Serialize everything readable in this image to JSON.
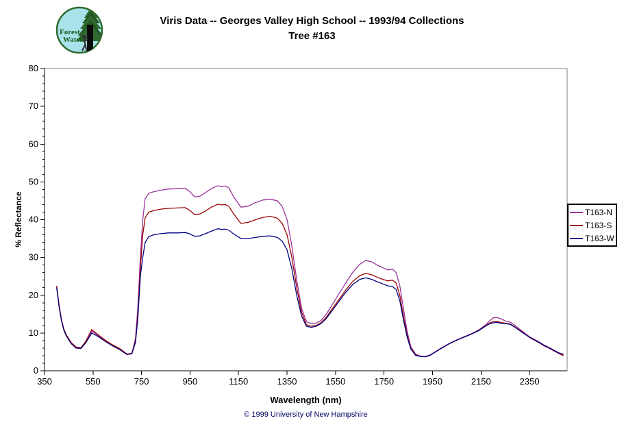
{
  "page": {
    "background": "#FFFFFF"
  },
  "logo": {
    "line1": "Forest",
    "line2": "Watch",
    "bg_color": "#A9E3EA",
    "ring_color": "#2D6A2D",
    "foliage_color": "#2F6B2F",
    "foliage_dark": "#1F4F1F",
    "trunk_color": "#0A0A0A",
    "text_color": "#1E5C1E"
  },
  "header": {
    "title_line1": "Viris Data -- Georges Valley High School -- 1993/94 Collections",
    "title_line2": "Tree #163"
  },
  "footer": {
    "copyright": "© 1999 University of New Hampshire",
    "color": "#000066"
  },
  "chart_data": {
    "type": "line",
    "title": "Viris Data -- Georges Valley High School -- 1993/94 Collections Tree #163",
    "xlabel": "Wavelength (nm)",
    "ylabel": "% Reflectance",
    "xlim": [
      350,
      2505
    ],
    "ylim": [
      0,
      80
    ],
    "x_ticks": [
      350,
      550,
      750,
      950,
      1150,
      1350,
      1550,
      1750,
      1950,
      2150,
      2350
    ],
    "y_ticks": [
      0,
      10,
      20,
      30,
      40,
      50,
      60,
      70,
      80
    ],
    "y_minor_step": 2,
    "grid": false,
    "legend_position": "right",
    "plot_border_color": "#808080",
    "axis_color": "#000000",
    "x": [
      400,
      410,
      420,
      430,
      440,
      460,
      480,
      500,
      520,
      545,
      570,
      600,
      630,
      660,
      690,
      710,
      725,
      735,
      745,
      755,
      765,
      780,
      800,
      830,
      860,
      900,
      930,
      950,
      970,
      990,
      1010,
      1040,
      1065,
      1080,
      1095,
      1110,
      1130,
      1160,
      1190,
      1220,
      1250,
      1280,
      1310,
      1330,
      1350,
      1370,
      1390,
      1410,
      1430,
      1450,
      1470,
      1490,
      1510,
      1530,
      1560,
      1590,
      1620,
      1650,
      1675,
      1700,
      1720,
      1745,
      1765,
      1785,
      1800,
      1815,
      1830,
      1845,
      1860,
      1880,
      1900,
      1920,
      1940,
      1960,
      1990,
      2020,
      2050,
      2080,
      2110,
      2140,
      2170,
      2185,
      2200,
      2215,
      2230,
      2250,
      2270,
      2290,
      2310,
      2330,
      2350,
      2370,
      2390,
      2410,
      2430,
      2450,
      2470,
      2490
    ],
    "series": [
      {
        "name": "T163-N",
        "color": "#993399",
        "values": [
          22.3,
          17.3,
          13.4,
          10.9,
          9.4,
          7.4,
          6.2,
          6.0,
          7.6,
          10.5,
          9.4,
          8.0,
          6.8,
          5.8,
          4.4,
          4.6,
          8.5,
          17.0,
          30.0,
          40.0,
          45.5,
          47.0,
          47.4,
          47.8,
          48.1,
          48.2,
          48.3,
          47.4,
          46.0,
          46.2,
          47.0,
          48.3,
          49.0,
          48.7,
          48.9,
          48.4,
          46.0,
          43.3,
          43.6,
          44.5,
          45.2,
          45.4,
          45.0,
          43.5,
          40.0,
          33.0,
          24.0,
          16.5,
          13.0,
          12.5,
          12.6,
          13.3,
          14.8,
          16.8,
          20.0,
          23.0,
          26.0,
          28.2,
          29.2,
          28.8,
          28.0,
          27.3,
          26.7,
          26.9,
          26.0,
          22.5,
          16.5,
          10.5,
          6.5,
          4.4,
          3.9,
          3.8,
          4.2,
          5.0,
          6.2,
          7.3,
          8.2,
          9.0,
          9.8,
          10.8,
          12.2,
          13.2,
          14.0,
          14.1,
          13.8,
          13.2,
          12.9,
          12.0,
          11.0,
          10.0,
          9.0,
          8.3,
          7.6,
          6.8,
          6.2,
          5.5,
          4.8,
          4.3
        ]
      },
      {
        "name": "T163-S",
        "color": "#990000",
        "values": [
          22.5,
          17.5,
          13.5,
          11.0,
          9.5,
          7.5,
          6.3,
          6.1,
          7.8,
          10.9,
          9.6,
          8.1,
          6.9,
          5.9,
          4.4,
          4.6,
          8.0,
          15.0,
          27.0,
          36.0,
          40.5,
          42.0,
          42.4,
          42.8,
          43.0,
          43.1,
          43.2,
          42.4,
          41.3,
          41.5,
          42.2,
          43.4,
          44.1,
          43.9,
          44.0,
          43.5,
          41.5,
          39.0,
          39.3,
          40.0,
          40.6,
          40.9,
          40.4,
          39.0,
          36.0,
          30.0,
          22.0,
          15.5,
          12.2,
          11.8,
          12.0,
          12.7,
          14.0,
          15.8,
          18.5,
          21.2,
          23.6,
          25.2,
          25.8,
          25.4,
          24.8,
          24.2,
          23.8,
          24.0,
          23.2,
          20.0,
          14.5,
          9.5,
          6.0,
          4.2,
          3.8,
          3.7,
          4.1,
          4.9,
          6.1,
          7.2,
          8.1,
          8.9,
          9.7,
          10.7,
          12.0,
          12.6,
          13.0,
          13.1,
          12.8,
          12.6,
          12.4,
          11.6,
          10.7,
          9.8,
          8.8,
          8.1,
          7.4,
          6.6,
          6.0,
          5.3,
          4.6,
          4.0
        ]
      },
      {
        "name": "T163-W",
        "color": "#000080",
        "values": [
          22.0,
          17.0,
          13.2,
          10.7,
          9.2,
          7.2,
          6.0,
          5.9,
          7.4,
          10.0,
          9.1,
          7.8,
          6.6,
          5.6,
          4.3,
          4.5,
          7.5,
          14.0,
          25.0,
          30.0,
          34.0,
          35.5,
          36.0,
          36.3,
          36.5,
          36.5,
          36.6,
          36.2,
          35.6,
          35.7,
          36.2,
          37.0,
          37.6,
          37.4,
          37.5,
          37.2,
          36.2,
          35.0,
          35.0,
          35.3,
          35.6,
          35.7,
          35.3,
          34.3,
          32.0,
          27.0,
          20.0,
          14.5,
          11.8,
          11.5,
          11.8,
          12.5,
          13.7,
          15.4,
          18.0,
          20.6,
          22.8,
          24.2,
          24.6,
          24.2,
          23.6,
          23.0,
          22.5,
          22.3,
          21.5,
          18.5,
          13.5,
          9.0,
          5.8,
          4.1,
          3.8,
          3.7,
          4.1,
          4.9,
          6.1,
          7.2,
          8.1,
          8.9,
          9.7,
          10.6,
          11.9,
          12.4,
          12.7,
          12.8,
          12.6,
          12.5,
          12.3,
          11.5,
          10.6,
          9.7,
          8.9,
          8.2,
          7.5,
          6.7,
          6.1,
          5.4,
          4.7,
          4.4
        ]
      }
    ]
  }
}
